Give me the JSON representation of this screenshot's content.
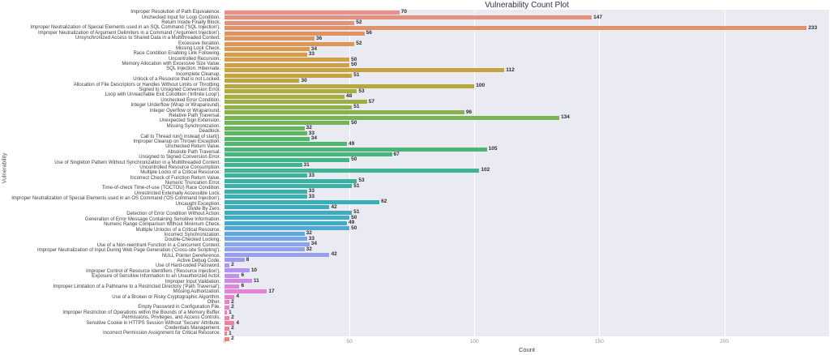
{
  "chart_data": {
    "type": "bar",
    "orientation": "horizontal",
    "title": "Vulnerability Count Plot",
    "xlabel": "Count",
    "ylabel": "Vulnerability",
    "xlim": [
      0,
      242
    ],
    "xticks": [
      0,
      50,
      100,
      150,
      200
    ],
    "grid": "white vertical gridlines on light lavender panel",
    "panel_background": "#eaeaf2",
    "categories": [
      "Improper Resolution of Path Equivalence.",
      "Unchecked Input for Loop Condition.",
      "Return Inside Finally Block.",
      "Improper Neutralization of Special Elements used in an SQL Command ('SQL Injection').",
      "Improper Neutralization of Argument Delimiters in a Command ('Argument Injection').",
      "Unsynchronized Access to Shared Data in a Multithreaded Context.",
      "Excessive Iteration.",
      "Missing Lock Check.",
      "Race Condition Enabling Link Following.",
      "Uncontrolled Recursion.",
      "Memory Allocation with Excessive Size Value.",
      "SQL Injection: Hibernate.",
      "Incomplete Cleanup.",
      "Unlock of a Resource that is not Locked.",
      "Allocation of File Descriptors or Handles Without Limits or Throttling.",
      "Signed to Unsigned Conversion Error.",
      "Loop with Unreachable Exit Condition ('Infinite Loop').",
      "Unchecked Error Condition.",
      "Integer Underflow (Wrap or Wraparound).",
      "Integer Overflow or Wraparound.",
      "Relative Path Traversal.",
      "Unexpected Sign Extension.",
      "Missing Synchronization.",
      "Deadlock.",
      "Call to Thread run() instead of start().",
      "Improper Cleanup on Thrown Exception.",
      "Unchecked Return Value.",
      "Absolute Path Traversal.",
      "Unsigned to Signed Conversion Error.",
      "Use of Singleton Pattern Without Synchronization in a Multithreaded Context.",
      "Uncontrolled Resource Consumption.",
      "Multiple Locks of a Critical Resource.",
      "Incorrect Check of Function Return Value.",
      "Numeric Truncation Error.",
      "Time-of-check Time-of-use (TOCTOU) Race Condition.",
      "Unrestricted Externally Accessible Lock.",
      "Improper Neutralization of Special Elements used in an OS Command ('OS Command Injection').",
      "Uncaught Exception.",
      "Divide By Zero.",
      "Detection of Error Condition Without Action.",
      "Generation of Error Message Containing Sensitive Information.",
      "Numeric Range Comparison Without Minimum Check.",
      "Multiple Unlocks of a Critical Resource.",
      "Incorrect Synchronization.",
      "Double-Checked Locking.",
      "Use of a Non-reentrant Function in a Concurrent Context.",
      "Improper Neutralization of Input During Web Page Generation ('Cross-site Scripting').",
      "NULL Pointer Dereference.",
      "Active Debug Code.",
      "Use of Hard-coded Password.",
      "Improper Control of Resource Identifiers ('Resource Injection').",
      "Exposure of Sensitive Information to an Unauthorized Actor.",
      "Improper Input Validation.",
      "Improper Limitation of a Pathname to a Restricted Directory ('Path Traversal').",
      "Missing Authorization.",
      "Use of a Broken or Risky Cryptographic Algorithm.",
      "Other.",
      "Empty Password in Configuration File.",
      "Improper Restriction of Operations within the Bounds of a Memory Buffer.",
      "Permissions, Privileges, and Access Controls.",
      "Sensitive Cookie in HTTPS Session Without 'Secure' Attribute.",
      "Credentials Management.",
      "Incorrect Permission Assignment for Critical Resource."
    ],
    "values": [
      70,
      147,
      52,
      233,
      56,
      36,
      52,
      34,
      33,
      50,
      50,
      112,
      51,
      30,
      100,
      53,
      48,
      57,
      51,
      96,
      134,
      50,
      32,
      33,
      34,
      49,
      105,
      67,
      50,
      31,
      102,
      33,
      53,
      51,
      33,
      33,
      62,
      42,
      51,
      50,
      49,
      50,
      32,
      33,
      34,
      32,
      42,
      8,
      2,
      10,
      6,
      11,
      6,
      17,
      4,
      2,
      2,
      1,
      2,
      4,
      2,
      1,
      2
    ],
    "palette_stops": [
      [
        0,
        "#e8908a"
      ],
      [
        4,
        "#e0925f"
      ],
      [
        8,
        "#d89c49"
      ],
      [
        12,
        "#c1a53c"
      ],
      [
        16,
        "#a8ad3f"
      ],
      [
        20,
        "#7cb350"
      ],
      [
        24,
        "#55b566"
      ],
      [
        28,
        "#41b586"
      ],
      [
        32,
        "#3bb2a1"
      ],
      [
        36,
        "#3aaeb4"
      ],
      [
        40,
        "#3fabc6"
      ],
      [
        42,
        "#5ea8dd"
      ],
      [
        44,
        "#8aa4ec"
      ],
      [
        47,
        "#9f9cef"
      ],
      [
        49,
        "#b394f0"
      ],
      [
        51,
        "#cf8be2"
      ],
      [
        53,
        "#e384d6"
      ],
      [
        55,
        "#eb80c8"
      ],
      [
        57,
        "#ee7fb8"
      ],
      [
        59,
        "#f07fa3"
      ],
      [
        61,
        "#f18093"
      ],
      [
        62,
        "#f1818a"
      ]
    ]
  }
}
